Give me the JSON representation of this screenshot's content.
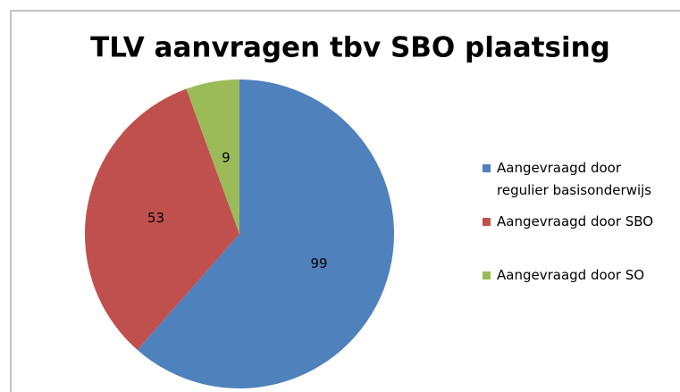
{
  "chart_data": {
    "type": "pie",
    "title": "TLV aanvragen tbv SBO plaatsing",
    "categories": [
      "Aangevraagd door regulier basisonderwijs",
      "Aangevraagd door SBO",
      "Aangevraagd door SO"
    ],
    "values": [
      99,
      53,
      9
    ],
    "colors": [
      "#4f81bd",
      "#c0504d",
      "#9bbb59"
    ],
    "legend": "right"
  }
}
